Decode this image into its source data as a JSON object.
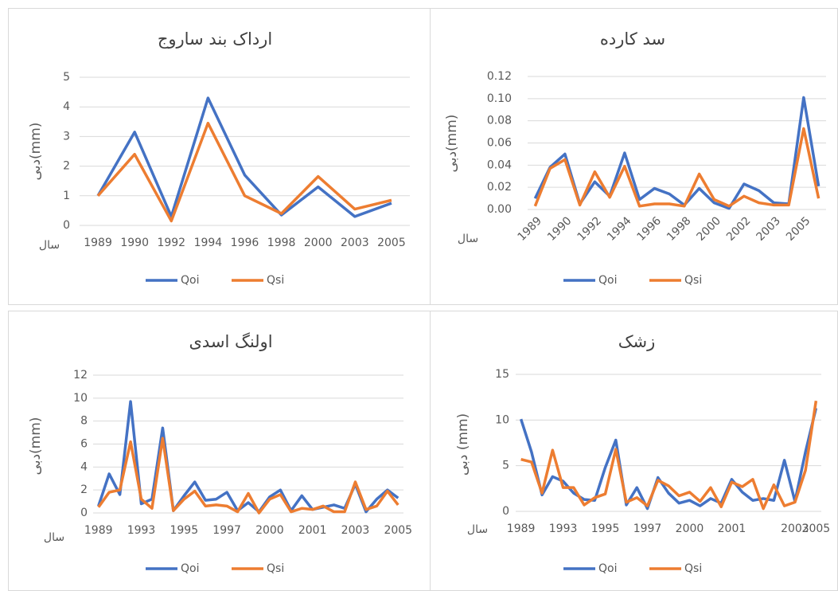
{
  "chart_data": [
    {
      "type": "line",
      "title": "ارداک بند ساروج",
      "y_label": "دبی(mm)",
      "x_label": "سال",
      "categories": [
        "1989",
        "1990",
        "1992",
        "1994",
        "1996",
        "1998",
        "2000",
        "2003",
        "2005"
      ],
      "series": [
        {
          "name": "Qoi",
          "color": "#4472c4",
          "values": [
            1,
            3.15,
            0.3,
            4.3,
            1.7,
            0.35,
            1.3,
            0.3,
            0.75
          ]
        },
        {
          "name": "Qsi",
          "color": "#ed7d31",
          "values": [
            1,
            2.4,
            0.15,
            3.45,
            1,
            0.4,
            1.65,
            0.55,
            0.85
          ]
        }
      ],
      "ylim": [
        0,
        5
      ],
      "yticks": [
        0,
        1,
        2,
        3,
        4,
        5
      ],
      "grid": true,
      "legend": "bottom"
    },
    {
      "type": "line",
      "title": "سد کارده",
      "y_label": "دبی(mm)",
      "x_label": "سال",
      "categories": [
        "1989",
        null,
        "1990",
        null,
        "1992",
        null,
        "1994",
        null,
        "1996",
        null,
        "1998",
        null,
        "2000",
        null,
        "2002",
        null,
        "2003",
        null,
        "2005",
        null
      ],
      "series": [
        {
          "name": "Qoi",
          "color": "#4472c4",
          "values": [
            0.01,
            0.038,
            0.05,
            0.005,
            0.025,
            0.012,
            0.051,
            0.009,
            0.019,
            0.014,
            0.004,
            0.019,
            0.006,
            0.001,
            0.023,
            0.017,
            0.006,
            0.005,
            0.101,
            0.021
          ]
        },
        {
          "name": "Qsi",
          "color": "#ed7d31",
          "values": [
            0.003,
            0.037,
            0.045,
            0.004,
            0.034,
            0.011,
            0.039,
            0.003,
            0.005,
            0.005,
            0.003,
            0.032,
            0.009,
            0.003,
            0.012,
            0.006,
            0.004,
            0.004,
            0.073,
            0.01
          ]
        }
      ],
      "ylim": [
        0,
        0.12
      ],
      "yticks": [
        {
          "value": 0,
          "label": "0.00"
        },
        {
          "value": 0.02,
          "label": "0.02"
        },
        {
          "value": 0.04,
          "label": "0.04"
        },
        {
          "value": 0.06,
          "label": "0.06"
        },
        {
          "value": 0.08,
          "label": "0.08"
        },
        {
          "value": 0.1,
          "label": "0.10"
        },
        {
          "value": 0.12,
          "label": "0.12"
        }
      ],
      "grid": true,
      "legend": "bottom"
    },
    {
      "type": "line",
      "title": "اولنگ اسدی",
      "y_label": "دبی(mm)",
      "x_label": "سال",
      "categories": [
        "1989",
        null,
        null,
        null,
        "1993",
        null,
        null,
        null,
        "1995",
        null,
        null,
        null,
        "1997",
        null,
        null,
        null,
        "2000",
        null,
        null,
        null,
        "2001",
        null,
        null,
        null,
        "2003",
        null,
        null,
        null,
        "2005"
      ],
      "series": [
        {
          "name": "Qoi",
          "color": "#4472c4",
          "values": [
            0.6,
            3.4,
            1.6,
            9.7,
            0.8,
            1.2,
            7.4,
            0.2,
            1.5,
            2.7,
            1.1,
            1.2,
            1.8,
            0.2,
            0.9,
            0.1,
            1.4,
            2.0,
            0.2,
            1.5,
            0.3,
            0.5,
            0.7,
            0.4,
            2.5,
            0.1,
            1.2,
            2.0,
            1.3
          ]
        },
        {
          "name": "Qsi",
          "color": "#ed7d31",
          "values": [
            0.5,
            1.8,
            2.0,
            6.2,
            1.2,
            0.4,
            6.5,
            0.2,
            1.2,
            1.9,
            0.6,
            0.7,
            0.6,
            0.1,
            1.7,
            0.0,
            1.2,
            1.6,
            0.1,
            0.4,
            0.3,
            0.6,
            0.1,
            0.1,
            2.7,
            0.3,
            0.6,
            1.9,
            0.7
          ]
        }
      ],
      "ylim": [
        0,
        12
      ],
      "yticks": [
        0,
        2,
        4,
        6,
        8,
        10,
        12
      ],
      "grid": true,
      "legend": "bottom"
    },
    {
      "type": "line",
      "title": "زشک",
      "y_label": "دبی (mm)",
      "x_label": "سال",
      "categories": [
        "1989",
        null,
        null,
        null,
        "1993",
        null,
        null,
        null,
        "1995",
        null,
        null,
        null,
        "1997",
        null,
        null,
        null,
        "2000",
        null,
        null,
        null,
        "2001",
        null,
        null,
        null,
        null,
        null,
        "2003",
        null,
        "2005"
      ],
      "series": [
        {
          "name": "Qoi",
          "color": "#4472c4",
          "values": [
            10.1,
            6.5,
            1.8,
            3.8,
            3.3,
            2.0,
            1.3,
            1.2,
            4.8,
            7.8,
            0.7,
            2.6,
            0.3,
            3.7,
            2.0,
            0.9,
            1.2,
            0.6,
            1.4,
            0.9,
            3.5,
            2.1,
            1.2,
            1.4,
            1.2,
            5.6,
            1.1,
            6.5,
            11.3
          ]
        },
        {
          "name": "Qsi",
          "color": "#ed7d31",
          "values": [
            5.7,
            5.4,
            2.0,
            6.7,
            2.6,
            2.6,
            0.7,
            1.5,
            1.9,
            6.8,
            1.0,
            1.5,
            0.6,
            3.4,
            2.8,
            1.7,
            2.1,
            1.1,
            2.6,
            0.5,
            3.2,
            2.7,
            3.5,
            0.3,
            2.9,
            0.6,
            1.0,
            4.5,
            12.1
          ]
        }
      ],
      "ylim": [
        0,
        15
      ],
      "yticks": [
        0,
        5,
        10,
        15
      ],
      "grid": true,
      "legend": "bottom"
    }
  ]
}
